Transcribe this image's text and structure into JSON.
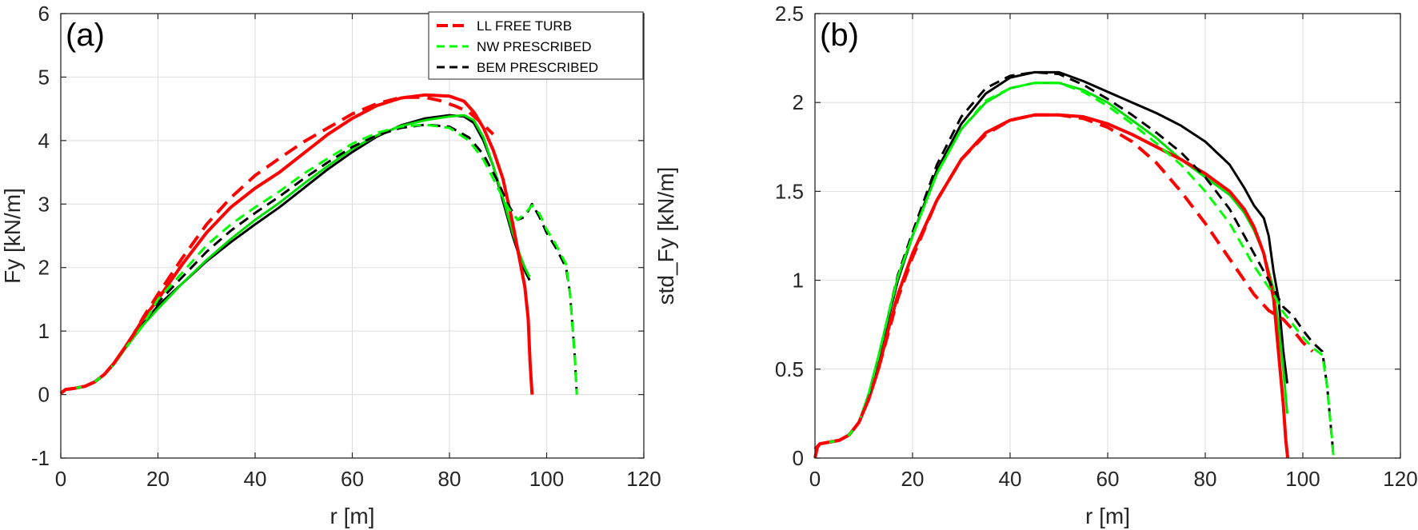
{
  "chart_data": [
    {
      "type": "line",
      "panel_label": "(a)",
      "xlabel": "r [m]",
      "ylabel": "Fy [kN/m]",
      "xlim": [
        0,
        120
      ],
      "ylim": [
        -1,
        6
      ],
      "xticks": [
        0,
        20,
        40,
        60,
        80,
        100,
        120
      ],
      "yticks": [
        -1,
        0,
        1,
        2,
        3,
        4,
        5,
        6
      ],
      "xtick_labels": [
        "0",
        "20",
        "40",
        "60",
        "80",
        "100",
        "120"
      ],
      "ytick_labels": [
        "-1",
        "0",
        "1",
        "2",
        "3",
        "4",
        "5",
        "6"
      ],
      "grid": true,
      "legend": {
        "position": "top-right",
        "entries": [
          {
            "label": "LL FREE TURB",
            "color": "#ff0000",
            "style": "dashed"
          },
          {
            "label": "NW PRESCRIBED",
            "color": "#00ff00",
            "style": "dashed"
          },
          {
            "label": "BEM PRESCRIBED",
            "color": "#000000",
            "style": "dashed"
          }
        ]
      },
      "series": [
        {
          "name": "BEM solid",
          "color": "#000000",
          "style": "solid",
          "width": 3,
          "x": [
            0,
            1,
            3,
            5,
            7,
            9,
            11,
            13,
            15,
            17,
            20,
            25,
            30,
            35,
            40,
            45,
            50,
            55,
            60,
            65,
            70,
            75,
            80,
            83,
            85,
            87,
            89,
            91,
            93,
            94.5,
            95.5,
            96.5
          ],
          "y": [
            0.02,
            0.08,
            0.1,
            0.13,
            0.2,
            0.32,
            0.48,
            0.7,
            0.92,
            1.12,
            1.4,
            1.75,
            2.1,
            2.4,
            2.68,
            2.95,
            3.25,
            3.55,
            3.82,
            4.06,
            4.24,
            4.35,
            4.4,
            4.38,
            4.28,
            4.0,
            3.6,
            3.05,
            2.5,
            2.15,
            1.95,
            1.8
          ]
        },
        {
          "name": "NW solid",
          "color": "#00e000",
          "style": "solid",
          "width": 3,
          "x": [
            0,
            1,
            3,
            5,
            7,
            9,
            11,
            13,
            15,
            17,
            20,
            25,
            30,
            35,
            40,
            45,
            50,
            55,
            60,
            65,
            70,
            75,
            80,
            83,
            85,
            87,
            89,
            91,
            93,
            94.5,
            95.5,
            96.5
          ],
          "y": [
            0.02,
            0.08,
            0.1,
            0.13,
            0.2,
            0.32,
            0.48,
            0.7,
            0.9,
            1.1,
            1.35,
            1.75,
            2.12,
            2.45,
            2.75,
            3.02,
            3.32,
            3.6,
            3.87,
            4.08,
            4.23,
            4.32,
            4.38,
            4.4,
            4.32,
            4.05,
            3.6,
            3.1,
            2.55,
            2.2,
            2.0,
            1.85
          ]
        },
        {
          "name": "LL solid",
          "color": "#ff0000",
          "style": "solid",
          "width": 4,
          "x": [
            0,
            1,
            3,
            5,
            7,
            9,
            11,
            13,
            15,
            17,
            20,
            25,
            30,
            35,
            40,
            45,
            50,
            55,
            60,
            65,
            70,
            75,
            80,
            83,
            85,
            87,
            89,
            91,
            93,
            94.5,
            95.5,
            96.2,
            96.6,
            97
          ],
          "y": [
            0.02,
            0.08,
            0.1,
            0.13,
            0.2,
            0.32,
            0.5,
            0.72,
            0.95,
            1.2,
            1.5,
            2.05,
            2.55,
            2.95,
            3.25,
            3.5,
            3.8,
            4.1,
            4.35,
            4.55,
            4.67,
            4.72,
            4.7,
            4.62,
            4.45,
            4.2,
            3.85,
            3.4,
            2.7,
            2.1,
            1.7,
            1.2,
            0.5,
            0.0
          ]
        },
        {
          "name": "BEM dashed",
          "color": "#000000",
          "style": "dashed",
          "width": 3,
          "x": [
            0,
            1,
            3,
            5,
            7,
            9,
            11,
            13,
            15,
            17,
            20,
            25,
            30,
            35,
            40,
            45,
            50,
            55,
            60,
            65,
            70,
            75,
            80,
            84,
            87,
            90,
            92,
            94,
            95.5,
            97,
            98.5,
            100,
            102,
            104,
            104.8,
            105.3,
            105.8,
            106.2
          ],
          "y": [
            0.02,
            0.08,
            0.1,
            0.13,
            0.2,
            0.32,
            0.48,
            0.7,
            0.9,
            1.1,
            1.45,
            1.85,
            2.25,
            2.58,
            2.86,
            3.12,
            3.4,
            3.66,
            3.9,
            4.08,
            4.2,
            4.25,
            4.22,
            4.05,
            3.78,
            3.35,
            3.0,
            2.75,
            2.8,
            3.0,
            2.8,
            2.55,
            2.3,
            2.0,
            1.6,
            1.1,
            0.6,
            0.0
          ]
        },
        {
          "name": "NW dashed",
          "color": "#00ff00",
          "style": "dashed",
          "width": 3,
          "x": [
            0,
            1,
            3,
            5,
            7,
            9,
            11,
            13,
            15,
            17,
            20,
            25,
            30,
            35,
            40,
            45,
            50,
            55,
            60,
            65,
            70,
            75,
            80,
            84,
            87,
            90,
            92,
            94,
            95.5,
            97,
            98.5,
            100,
            102,
            104,
            104.8,
            105.3,
            105.8,
            106.2
          ],
          "y": [
            0.02,
            0.08,
            0.1,
            0.13,
            0.2,
            0.32,
            0.48,
            0.7,
            0.9,
            1.1,
            1.5,
            1.92,
            2.35,
            2.68,
            2.95,
            3.2,
            3.48,
            3.72,
            3.95,
            4.12,
            4.22,
            4.25,
            4.2,
            4.0,
            3.7,
            3.25,
            2.95,
            2.75,
            2.85,
            2.98,
            2.85,
            2.6,
            2.35,
            2.05,
            1.6,
            1.1,
            0.6,
            0.0
          ]
        },
        {
          "name": "LL dashed",
          "color": "#ff0000",
          "style": "dashed",
          "width": 4,
          "x": [
            0,
            1,
            3,
            5,
            7,
            9,
            11,
            13,
            15,
            17,
            20,
            25,
            30,
            35,
            40,
            45,
            50,
            55,
            60,
            65,
            70,
            75,
            78,
            81,
            84,
            87,
            89
          ],
          "y": [
            0.02,
            0.08,
            0.1,
            0.13,
            0.2,
            0.32,
            0.5,
            0.72,
            0.95,
            1.22,
            1.58,
            2.15,
            2.68,
            3.1,
            3.45,
            3.72,
            3.98,
            4.2,
            4.42,
            4.58,
            4.68,
            4.68,
            4.63,
            4.55,
            4.45,
            4.25,
            4.1
          ]
        }
      ]
    },
    {
      "type": "line",
      "panel_label": "(b)",
      "xlabel": "r [m]",
      "ylabel": "std_Fy [kN/m]",
      "xlim": [
        0,
        120
      ],
      "ylim": [
        0,
        2.5
      ],
      "xticks": [
        0,
        20,
        40,
        60,
        80,
        100,
        120
      ],
      "yticks": [
        0,
        0.5,
        1,
        1.5,
        2,
        2.5
      ],
      "xtick_labels": [
        "0",
        "20",
        "40",
        "60",
        "80",
        "100",
        "120"
      ],
      "ytick_labels": [
        "0",
        "0.5",
        "1",
        "1.5",
        "2",
        "2.5"
      ],
      "grid": true,
      "series": [
        {
          "name": "BEM solid",
          "color": "#000000",
          "style": "solid",
          "width": 3,
          "x": [
            0,
            1,
            3,
            5,
            7,
            9,
            11,
            13,
            15,
            17,
            20,
            25,
            30,
            35,
            40,
            45,
            50,
            55,
            60,
            65,
            70,
            75,
            80,
            85,
            88,
            90,
            92,
            93,
            94,
            95,
            96,
            96.8
          ],
          "y": [
            0.05,
            0.08,
            0.09,
            0.1,
            0.13,
            0.2,
            0.35,
            0.55,
            0.78,
            1.0,
            1.25,
            1.62,
            1.88,
            2.05,
            2.14,
            2.17,
            2.17,
            2.12,
            2.06,
            2.0,
            1.94,
            1.87,
            1.78,
            1.65,
            1.52,
            1.42,
            1.35,
            1.25,
            1.05,
            0.9,
            0.6,
            0.42
          ]
        },
        {
          "name": "NW solid",
          "color": "#00e000",
          "style": "solid",
          "width": 3,
          "x": [
            0,
            1,
            3,
            5,
            7,
            9,
            11,
            13,
            15,
            17,
            20,
            25,
            30,
            35,
            40,
            45,
            50,
            55,
            60,
            65,
            70,
            75,
            80,
            85,
            88,
            90,
            92,
            94,
            95,
            96,
            96.8
          ],
          "y": [
            0.05,
            0.08,
            0.09,
            0.1,
            0.13,
            0.2,
            0.36,
            0.57,
            0.8,
            1.02,
            1.25,
            1.6,
            1.85,
            2.0,
            2.08,
            2.11,
            2.11,
            2.07,
            2.0,
            1.9,
            1.8,
            1.68,
            1.58,
            1.48,
            1.38,
            1.28,
            1.15,
            0.95,
            0.75,
            0.5,
            0.25
          ]
        },
        {
          "name": "LL solid",
          "color": "#ff0000",
          "style": "solid",
          "width": 4,
          "x": [
            0,
            0.5,
            1,
            3,
            5,
            7,
            9,
            11,
            13,
            15,
            17,
            20,
            25,
            30,
            35,
            40,
            45,
            50,
            55,
            60,
            65,
            70,
            75,
            80,
            85,
            88,
            90,
            92,
            94,
            95,
            96,
            96.5,
            96.9
          ],
          "y": [
            0.0,
            0.06,
            0.08,
            0.09,
            0.1,
            0.13,
            0.2,
            0.33,
            0.5,
            0.72,
            0.92,
            1.15,
            1.45,
            1.68,
            1.83,
            1.9,
            1.93,
            1.93,
            1.92,
            1.88,
            1.82,
            1.75,
            1.68,
            1.6,
            1.5,
            1.4,
            1.3,
            1.15,
            0.9,
            0.6,
            0.3,
            0.1,
            0.0
          ]
        },
        {
          "name": "BEM dashed",
          "color": "#000000",
          "style": "dashed",
          "width": 3,
          "x": [
            0,
            1,
            3,
            5,
            7,
            9,
            11,
            13,
            15,
            17,
            20,
            25,
            30,
            35,
            40,
            45,
            50,
            55,
            60,
            65,
            70,
            75,
            80,
            85,
            90,
            94,
            96,
            98,
            100,
            102,
            104,
            105,
            105.5,
            106,
            106.3
          ],
          "y": [
            0.05,
            0.08,
            0.09,
            0.1,
            0.13,
            0.2,
            0.35,
            0.56,
            0.8,
            1.03,
            1.27,
            1.65,
            1.92,
            2.08,
            2.15,
            2.17,
            2.16,
            2.1,
            2.02,
            1.93,
            1.83,
            1.72,
            1.58,
            1.4,
            1.15,
            0.95,
            0.85,
            0.8,
            0.72,
            0.65,
            0.6,
            0.4,
            0.25,
            0.1,
            0.0
          ]
        },
        {
          "name": "NW dashed",
          "color": "#00ff00",
          "style": "dashed",
          "width": 3,
          "x": [
            0,
            1,
            3,
            5,
            7,
            9,
            11,
            13,
            15,
            17,
            20,
            25,
            30,
            35,
            40,
            45,
            50,
            55,
            60,
            65,
            70,
            75,
            80,
            85,
            90,
            94,
            96,
            98,
            100,
            102,
            104,
            105,
            105.5,
            106,
            106.3
          ],
          "y": [
            0.05,
            0.08,
            0.09,
            0.1,
            0.13,
            0.2,
            0.36,
            0.57,
            0.8,
            1.02,
            1.25,
            1.6,
            1.85,
            2.01,
            2.08,
            2.11,
            2.11,
            2.06,
            1.98,
            1.88,
            1.77,
            1.65,
            1.5,
            1.32,
            1.08,
            0.92,
            0.82,
            0.75,
            0.68,
            0.62,
            0.58,
            0.4,
            0.25,
            0.1,
            0.0
          ]
        },
        {
          "name": "LL dashed",
          "color": "#ff0000",
          "style": "dashed",
          "width": 4,
          "x": [
            0,
            1,
            3,
            5,
            7,
            9,
            11,
            13,
            15,
            17,
            20,
            25,
            30,
            35,
            40,
            45,
            50,
            55,
            60,
            65,
            70,
            75,
            80,
            85,
            90,
            93,
            96,
            98,
            100,
            102
          ],
          "y": [
            0.05,
            0.08,
            0.09,
            0.1,
            0.13,
            0.2,
            0.33,
            0.5,
            0.7,
            0.9,
            1.13,
            1.45,
            1.68,
            1.82,
            1.9,
            1.93,
            1.93,
            1.91,
            1.86,
            1.78,
            1.66,
            1.5,
            1.32,
            1.12,
            0.92,
            0.83,
            0.78,
            0.72,
            0.65,
            0.6
          ]
        }
      ]
    }
  ]
}
